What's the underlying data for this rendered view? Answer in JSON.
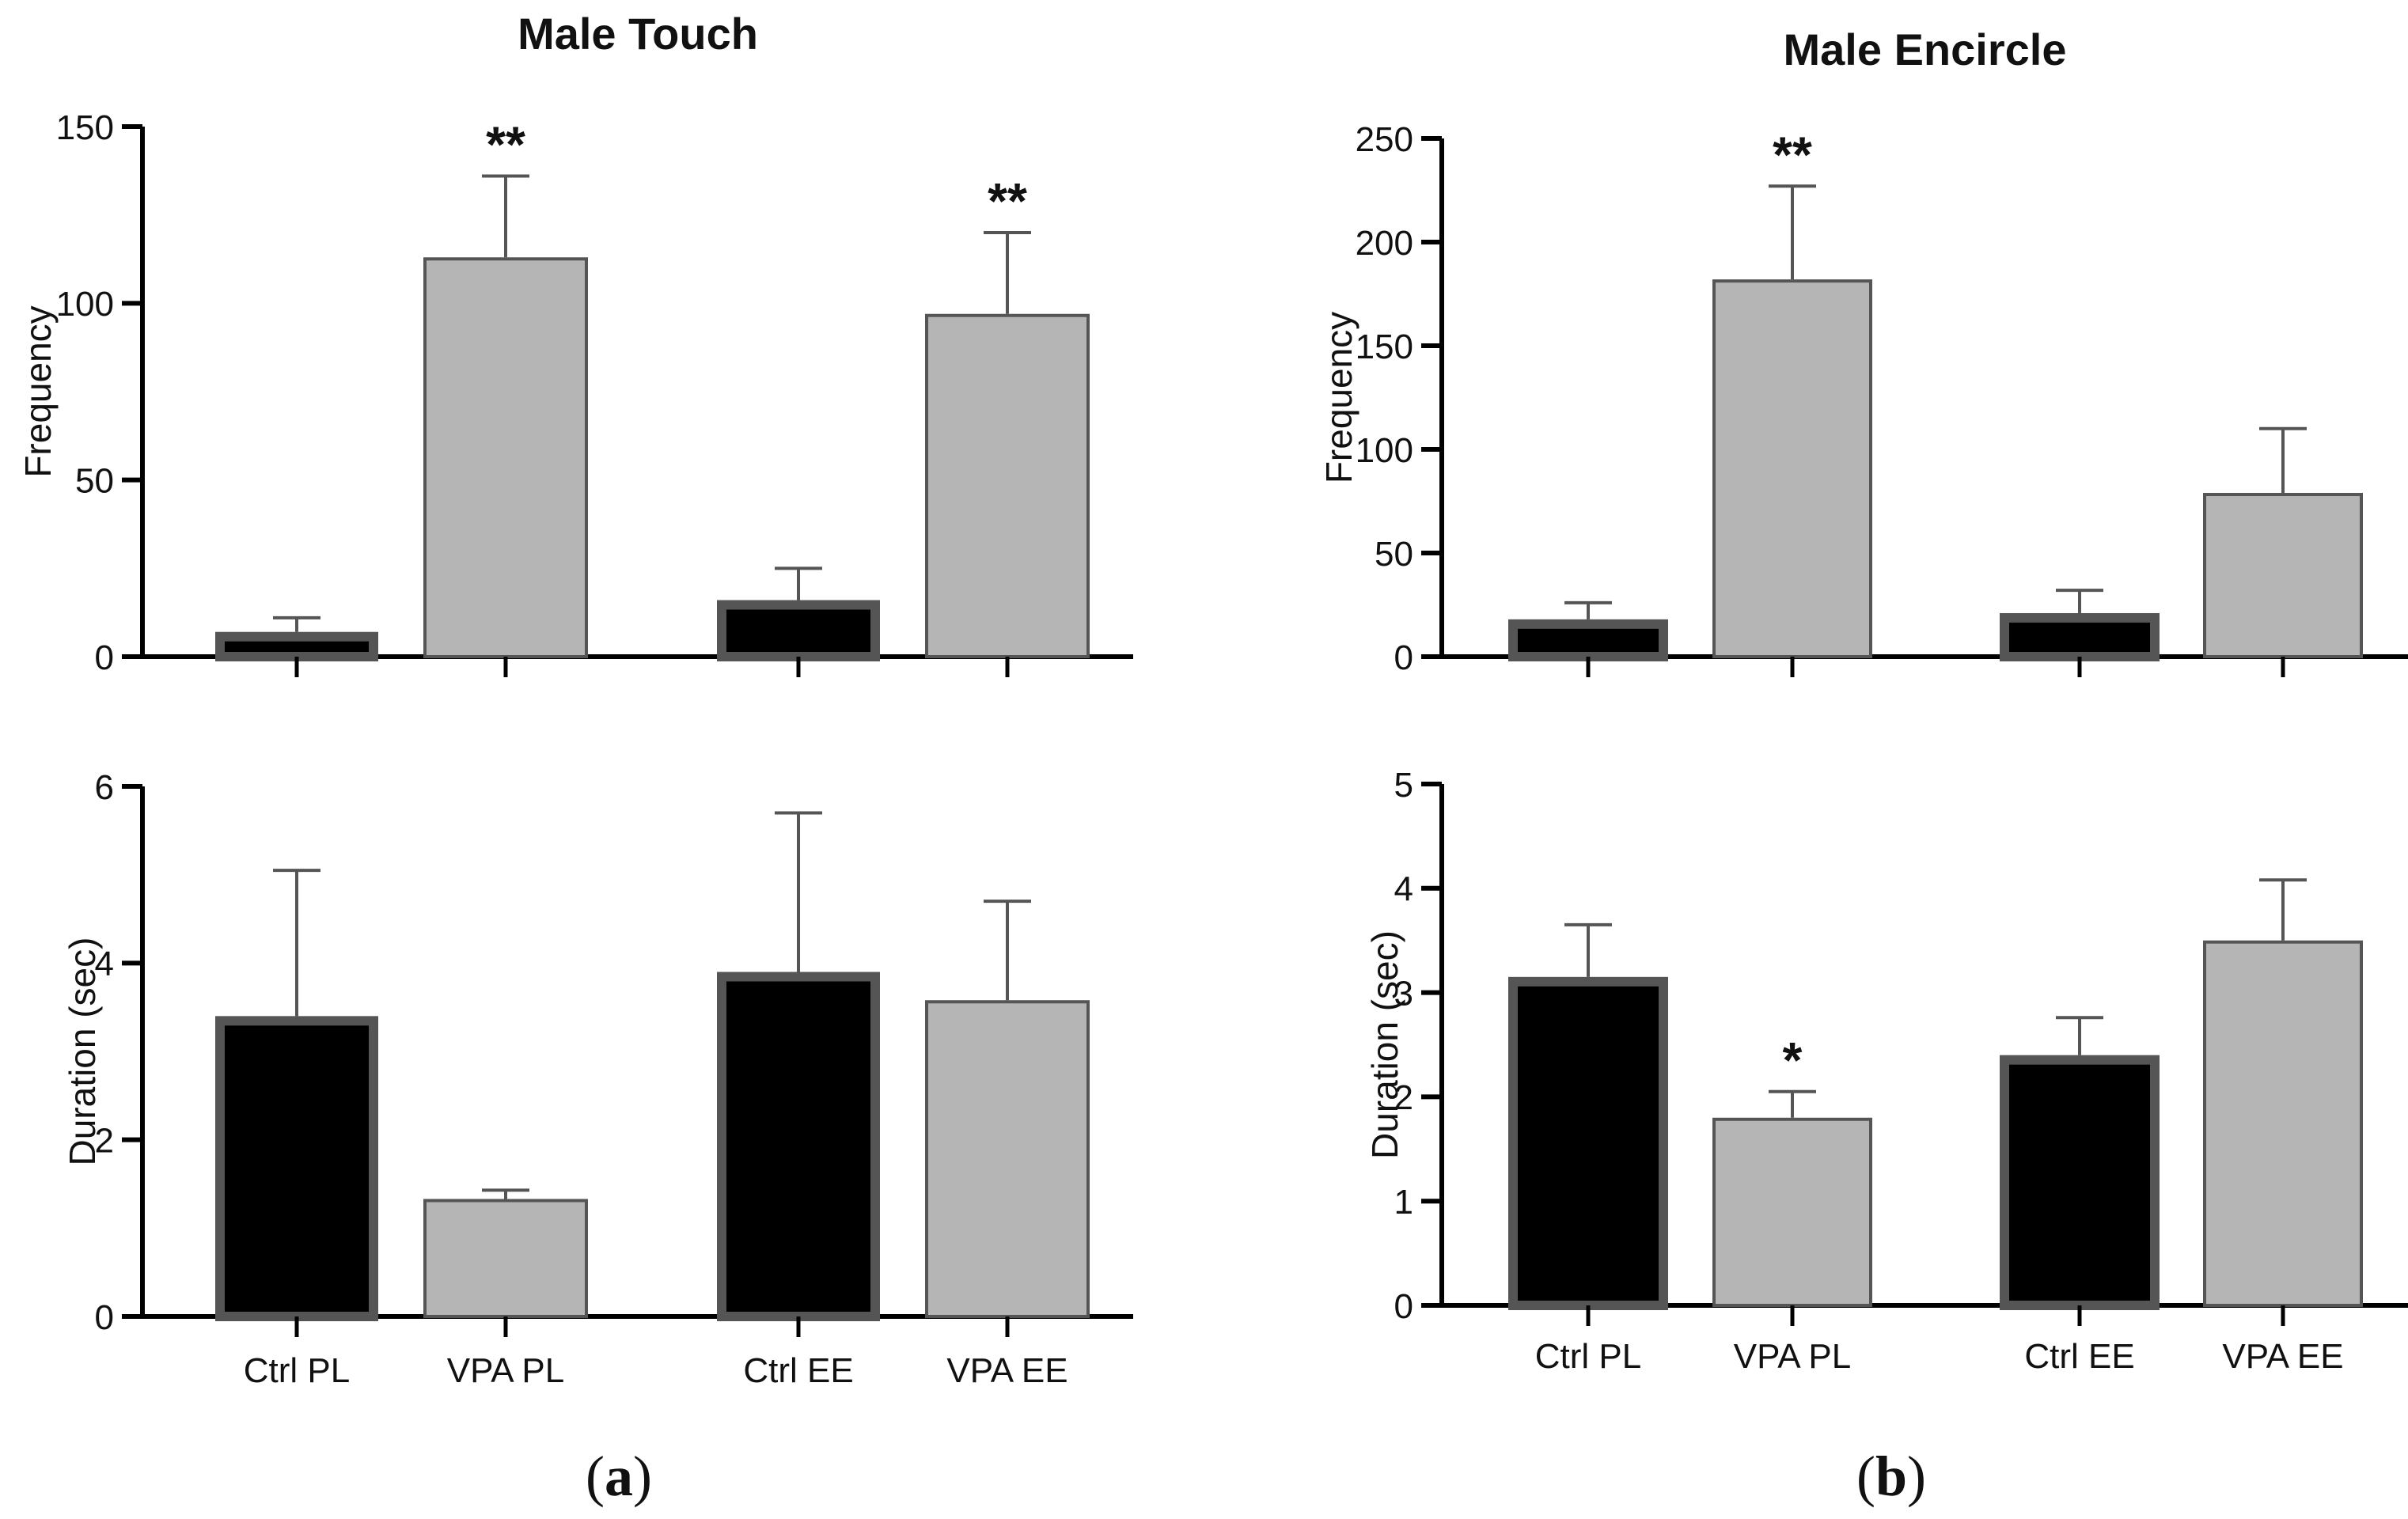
{
  "figure_labels": [
    "a",
    "b"
  ],
  "colors": {
    "ctrl_fill": "#000000",
    "ctrl_edge": "#555555",
    "vpa_fill": "#b5b5b5",
    "vpa_edge": "#555555",
    "axis": "#000000",
    "error": "#555555"
  },
  "chart_data": [
    {
      "id": "a-top",
      "type": "bar",
      "title": "Male Touch",
      "ylabel": "Frequency",
      "xlabel": "",
      "ylim": [
        0,
        150
      ],
      "yticks": [
        0,
        50,
        100,
        150
      ],
      "categories": [
        "Ctrl PL",
        "VPA PL",
        "Ctrl EE",
        "VPA EE"
      ],
      "show_category_labels": false,
      "groups": [
        "ctrl",
        "vpa",
        "ctrl",
        "vpa"
      ],
      "values": [
        7,
        113,
        16,
        97
      ],
      "errors": [
        4,
        23,
        9,
        23
      ],
      "significance": [
        "",
        "**",
        "",
        "**"
      ]
    },
    {
      "id": "a-bottom",
      "type": "bar",
      "title": "",
      "ylabel": "Duration (sec)",
      "xlabel": "",
      "ylim": [
        0,
        6
      ],
      "yticks": [
        0,
        2,
        4,
        6
      ],
      "categories": [
        "Ctrl PL",
        "VPA PL",
        "Ctrl EE",
        "VPA EE"
      ],
      "show_category_labels": true,
      "groups": [
        "ctrl",
        "vpa",
        "ctrl",
        "vpa"
      ],
      "values": [
        3.4,
        1.33,
        3.9,
        3.58
      ],
      "errors": [
        1.65,
        0.1,
        1.8,
        1.12
      ],
      "significance": [
        "",
        "",
        "",
        ""
      ]
    },
    {
      "id": "b-top",
      "type": "bar",
      "title": "Male Encircle",
      "ylabel": "Frequency",
      "xlabel": "",
      "ylim": [
        0,
        250
      ],
      "yticks": [
        0,
        50,
        100,
        150,
        200,
        250
      ],
      "categories": [
        "Ctrl PL",
        "VPA PL",
        "Ctrl EE",
        "VPA EE"
      ],
      "show_category_labels": false,
      "groups": [
        "ctrl",
        "vpa",
        "ctrl",
        "vpa"
      ],
      "values": [
        18,
        182,
        21,
        79
      ],
      "errors": [
        8,
        45,
        11,
        31
      ],
      "significance": [
        "",
        "**",
        "",
        ""
      ]
    },
    {
      "id": "b-bottom",
      "type": "bar",
      "title": "",
      "ylabel": "Duration (sec)",
      "xlabel": "",
      "ylim": [
        0,
        5
      ],
      "yticks": [
        0,
        1,
        2,
        3,
        4,
        5
      ],
      "categories": [
        "Ctrl PL",
        "VPA PL",
        "Ctrl EE",
        "VPA EE"
      ],
      "show_category_labels": true,
      "groups": [
        "ctrl",
        "vpa",
        "ctrl",
        "vpa"
      ],
      "values": [
        3.15,
        1.8,
        2.4,
        3.5
      ],
      "errors": [
        0.5,
        0.25,
        0.36,
        0.58
      ],
      "significance": [
        "",
        "*",
        "",
        ""
      ]
    }
  ]
}
